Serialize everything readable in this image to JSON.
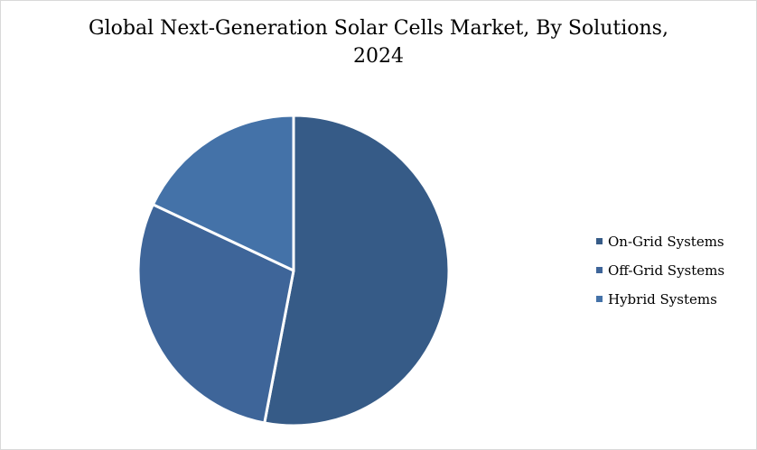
{
  "chart_data": {
    "type": "pie",
    "title_lines": [
      "Global Next-Generation Solar Cells Market, By Solutions,",
      "2024"
    ],
    "categories": [
      "On-Grid Systems",
      "Off-Grid Systems",
      "Hybrid Systems"
    ],
    "values": [
      53,
      29,
      18
    ],
    "colors": [
      "#365b87",
      "#3e6599",
      "#4472a8"
    ],
    "legend_position": "right",
    "start_angle_deg": 0,
    "direction": "clockwise"
  }
}
